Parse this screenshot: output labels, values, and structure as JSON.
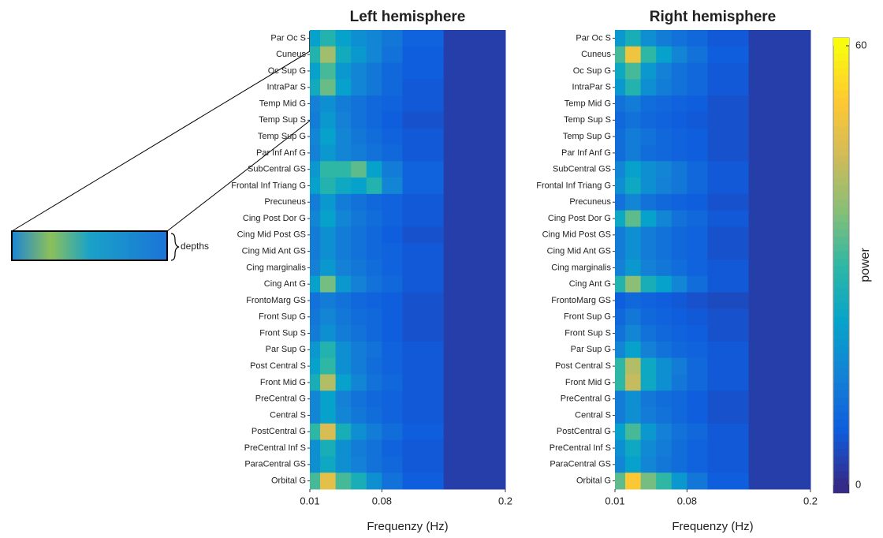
{
  "chart_data": [
    {
      "type": "heatmap",
      "title": "Left hemisphere",
      "xlabel": "Frequenzy (Hz)",
      "xlim": [
        0.01,
        0.2
      ],
      "xticks": [
        0.01,
        0.08,
        0.2
      ],
      "bins": [
        0.01,
        0.02,
        0.035,
        0.05,
        0.065,
        0.08,
        0.1,
        0.14,
        0.2
      ],
      "categories": [
        "Par Oc S",
        "Cuneus",
        "Oc Sup G",
        "IntraPar S",
        "Temp Mid G",
        "Temp Sup S",
        "Temp Sup G",
        "Par Inf Anf G",
        "SubCentral GS",
        "Frontal Inf Triang G",
        "Precuneus",
        "Cing Post Dor G",
        "Cing Mid Post GS",
        "Cing Mid Ant GS",
        "Cing marginalis",
        "Cing Ant G",
        "FrontoMarg GS",
        "Front Sup G",
        "Front Sup S",
        "Par Sup G",
        "Post Central S",
        "Front Mid G",
        "PreCentral G",
        "Central S",
        "PostCentral G",
        "PreCentral Inf S",
        "ParaCentral GS",
        "Orbital G"
      ],
      "values": [
        [
          22,
          28,
          22,
          18,
          16,
          13,
          9,
          3
        ],
        [
          28,
          40,
          25,
          20,
          16,
          12,
          8,
          3
        ],
        [
          22,
          32,
          20,
          16,
          13,
          10,
          8,
          3
        ],
        [
          25,
          35,
          22,
          16,
          13,
          10,
          7,
          3
        ],
        [
          15,
          18,
          14,
          12,
          10,
          9,
          7,
          3
        ],
        [
          14,
          20,
          15,
          12,
          10,
          8,
          6,
          3
        ],
        [
          16,
          22,
          16,
          13,
          11,
          9,
          7,
          3
        ],
        [
          15,
          20,
          16,
          14,
          12,
          10,
          7,
          3
        ],
        [
          20,
          30,
          30,
          34,
          22,
          14,
          9,
          3
        ],
        [
          22,
          28,
          24,
          22,
          28,
          16,
          9,
          3
        ],
        [
          14,
          20,
          14,
          12,
          10,
          9,
          7,
          3
        ],
        [
          16,
          22,
          16,
          13,
          11,
          9,
          7,
          3
        ],
        [
          14,
          18,
          14,
          12,
          10,
          8,
          6,
          3
        ],
        [
          14,
          18,
          14,
          12,
          10,
          9,
          7,
          3
        ],
        [
          15,
          20,
          15,
          13,
          11,
          9,
          7,
          3
        ],
        [
          22,
          36,
          20,
          15,
          12,
          10,
          7,
          3
        ],
        [
          12,
          14,
          12,
          10,
          9,
          8,
          6,
          3
        ],
        [
          13,
          16,
          13,
          11,
          10,
          8,
          6,
          3
        ],
        [
          14,
          18,
          14,
          12,
          10,
          8,
          6,
          3
        ],
        [
          20,
          28,
          18,
          14,
          12,
          9,
          7,
          3
        ],
        [
          22,
          30,
          18,
          14,
          11,
          9,
          7,
          3
        ],
        [
          26,
          42,
          22,
          16,
          12,
          10,
          7,
          3
        ],
        [
          16,
          22,
          15,
          12,
          10,
          9,
          7,
          3
        ],
        [
          16,
          22,
          16,
          13,
          11,
          9,
          7,
          3
        ],
        [
          30,
          46,
          26,
          18,
          14,
          11,
          8,
          3
        ],
        [
          18,
          26,
          18,
          14,
          12,
          9,
          7,
          3
        ],
        [
          18,
          24,
          18,
          15,
          12,
          10,
          7,
          3
        ],
        [
          32,
          48,
          32,
          26,
          18,
          12,
          8,
          3
        ]
      ]
    },
    {
      "type": "heatmap",
      "title": "Right hemisphere",
      "xlabel": "Frequenzy (Hz)",
      "xlim": [
        0.01,
        0.2
      ],
      "xticks": [
        0.01,
        0.08,
        0.2
      ],
      "bins": [
        0.01,
        0.02,
        0.035,
        0.05,
        0.065,
        0.08,
        0.1,
        0.14,
        0.2
      ],
      "categories": [
        "Par Oc S",
        "Cuneus",
        "Oc Sup G",
        "IntraPar S",
        "Temp Mid G",
        "Temp Sup S",
        "Temp Sup G",
        "Par Inf Anf G",
        "SubCentral GS",
        "Frontal Inf Triang G",
        "Precuneus",
        "Cing Post Dor G",
        "Cing Mid Post GS",
        "Cing Mid Ant GS",
        "Cing marginalis",
        "Cing Ant G",
        "FrontoMarg GS",
        "Front Sup G",
        "Front Sup S",
        "Par Sup G",
        "Post Central S",
        "Front Mid G",
        "PreCentral G",
        "Central S",
        "PostCentral G",
        "PreCentral Inf S",
        "ParaCentral GS",
        "Orbital G"
      ],
      "values": [
        [
          20,
          26,
          18,
          14,
          12,
          10,
          7,
          3
        ],
        [
          32,
          50,
          30,
          22,
          16,
          12,
          8,
          3
        ],
        [
          24,
          32,
          20,
          15,
          12,
          10,
          7,
          3
        ],
        [
          20,
          28,
          18,
          14,
          12,
          10,
          7,
          3
        ],
        [
          12,
          14,
          11,
          10,
          9,
          8,
          6,
          3
        ],
        [
          10,
          12,
          10,
          9,
          8,
          7,
          6,
          3
        ],
        [
          11,
          14,
          12,
          10,
          9,
          8,
          6,
          3
        ],
        [
          11,
          14,
          11,
          10,
          9,
          8,
          6,
          3
        ],
        [
          16,
          22,
          18,
          16,
          13,
          10,
          7,
          3
        ],
        [
          18,
          24,
          18,
          15,
          13,
          10,
          7,
          3
        ],
        [
          12,
          16,
          12,
          10,
          9,
          8,
          6,
          3
        ],
        [
          24,
          34,
          22,
          16,
          12,
          10,
          7,
          3
        ],
        [
          14,
          18,
          14,
          12,
          10,
          9,
          6,
          3
        ],
        [
          14,
          18,
          14,
          12,
          10,
          9,
          6,
          3
        ],
        [
          15,
          20,
          15,
          13,
          11,
          9,
          7,
          3
        ],
        [
          28,
          38,
          26,
          22,
          16,
          11,
          7,
          3
        ],
        [
          8,
          10,
          9,
          8,
          7,
          6,
          5,
          3
        ],
        [
          10,
          13,
          10,
          9,
          8,
          7,
          6,
          3
        ],
        [
          12,
          16,
          12,
          10,
          9,
          8,
          6,
          3
        ],
        [
          16,
          22,
          15,
          12,
          10,
          9,
          7,
          3
        ],
        [
          30,
          42,
          24,
          18,
          14,
          10,
          7,
          3
        ],
        [
          30,
          44,
          24,
          18,
          13,
          10,
          7,
          3
        ],
        [
          14,
          18,
          13,
          11,
          10,
          8,
          6,
          3
        ],
        [
          14,
          18,
          14,
          12,
          10,
          8,
          6,
          3
        ],
        [
          22,
          32,
          20,
          15,
          12,
          10,
          7,
          3
        ],
        [
          18,
          24,
          17,
          14,
          11,
          9,
          7,
          3
        ],
        [
          16,
          22,
          16,
          13,
          11,
          9,
          7,
          3
        ],
        [
          34,
          52,
          36,
          30,
          20,
          13,
          8,
          3
        ]
      ]
    }
  ],
  "colorbar": {
    "label": "power",
    "clim": [
      0,
      60
    ],
    "ticks": [
      0,
      60
    ]
  },
  "annotation": "depths"
}
